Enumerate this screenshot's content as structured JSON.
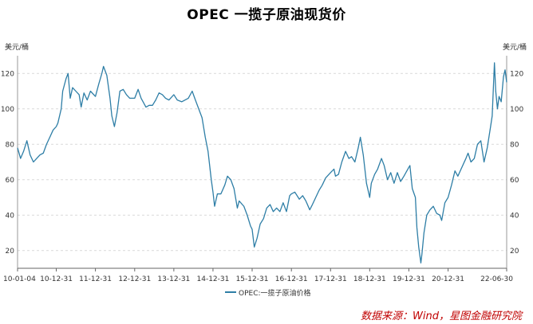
{
  "chart_data": {
    "type": "line",
    "title": "OPEC 一揽子原油现货价",
    "unit_left": "美元/桶",
    "unit_right": "美元/桶",
    "ylim": [
      10,
      130
    ],
    "yticks": [
      20,
      40,
      60,
      80,
      100,
      120
    ],
    "grid": true,
    "legend_position": "bottom-center",
    "x_tick_labels": [
      "10-01-04",
      "10-12-31",
      "11-12-31",
      "12-12-31",
      "13-12-31",
      "14-12-31",
      "15-12-31",
      "16-12-31",
      "17-12-31",
      "18-12-31",
      "19-12-31",
      "20-12-31",
      "22-06-30"
    ],
    "x_tick_dates": [
      "2010-01-04",
      "2010-12-31",
      "2011-12-31",
      "2012-12-31",
      "2013-12-31",
      "2014-12-31",
      "2015-12-31",
      "2016-12-31",
      "2017-12-31",
      "2018-12-31",
      "2019-12-31",
      "2020-12-31",
      "2022-06-30"
    ],
    "series": [
      {
        "name": "OPEC:一揽子原油价格",
        "color": "#2e7ea6",
        "points": [
          [
            "2010-01-04",
            78
          ],
          [
            "2010-02-01",
            72
          ],
          [
            "2010-03-01",
            76
          ],
          [
            "2010-04-01",
            82
          ],
          [
            "2010-05-01",
            74
          ],
          [
            "2010-06-01",
            70
          ],
          [
            "2010-07-01",
            72
          ],
          [
            "2010-08-01",
            74
          ],
          [
            "2010-09-01",
            75
          ],
          [
            "2010-10-01",
            80
          ],
          [
            "2010-11-01",
            84
          ],
          [
            "2010-12-01",
            88
          ],
          [
            "2010-12-31",
            90
          ],
          [
            "2011-01-15",
            92
          ],
          [
            "2011-02-15",
            100
          ],
          [
            "2011-03-01",
            110
          ],
          [
            "2011-04-01",
            117
          ],
          [
            "2011-04-20",
            120
          ],
          [
            "2011-05-10",
            106
          ],
          [
            "2011-06-01",
            112
          ],
          [
            "2011-07-01",
            110
          ],
          [
            "2011-08-01",
            108
          ],
          [
            "2011-08-20",
            101
          ],
          [
            "2011-09-15",
            109
          ],
          [
            "2011-10-15",
            105
          ],
          [
            "2011-11-15",
            110
          ],
          [
            "2011-12-31",
            107
          ],
          [
            "2012-01-31",
            114
          ],
          [
            "2012-02-29",
            120
          ],
          [
            "2012-03-15",
            124
          ],
          [
            "2012-04-15",
            119
          ],
          [
            "2012-05-15",
            106
          ],
          [
            "2012-06-01",
            96
          ],
          [
            "2012-06-25",
            90
          ],
          [
            "2012-07-20",
            98
          ],
          [
            "2012-08-15",
            110
          ],
          [
            "2012-09-15",
            111
          ],
          [
            "2012-10-15",
            108
          ],
          [
            "2012-11-15",
            106
          ],
          [
            "2012-12-31",
            106
          ],
          [
            "2013-02-01",
            111
          ],
          [
            "2013-03-01",
            106
          ],
          [
            "2013-04-15",
            101
          ],
          [
            "2013-05-15",
            102
          ],
          [
            "2013-06-15",
            102
          ],
          [
            "2013-07-15",
            105
          ],
          [
            "2013-08-15",
            109
          ],
          [
            "2013-09-15",
            108
          ],
          [
            "2013-10-15",
            106
          ],
          [
            "2013-11-15",
            105
          ],
          [
            "2013-12-31",
            108
          ],
          [
            "2014-02-01",
            105
          ],
          [
            "2014-03-15",
            104
          ],
          [
            "2014-05-15",
            106
          ],
          [
            "2014-06-20",
            110
          ],
          [
            "2014-07-20",
            105
          ],
          [
            "2014-08-20",
            100
          ],
          [
            "2014-09-20",
            95
          ],
          [
            "2014-10-20",
            84
          ],
          [
            "2014-11-15",
            76
          ],
          [
            "2014-12-15",
            60
          ],
          [
            "2014-12-31",
            53
          ],
          [
            "2015-01-15",
            45
          ],
          [
            "2015-02-10",
            52
          ],
          [
            "2015-03-15",
            52
          ],
          [
            "2015-04-20",
            57
          ],
          [
            "2015-05-15",
            62
          ],
          [
            "2015-06-15",
            60
          ],
          [
            "2015-07-15",
            55
          ],
          [
            "2015-08-15",
            44
          ],
          [
            "2015-09-01",
            48
          ],
          [
            "2015-10-15",
            45
          ],
          [
            "2015-11-15",
            40
          ],
          [
            "2015-12-15",
            34
          ],
          [
            "2015-12-31",
            32
          ],
          [
            "2016-01-20",
            22
          ],
          [
            "2016-02-15",
            27
          ],
          [
            "2016-03-15",
            35
          ],
          [
            "2016-04-15",
            38
          ],
          [
            "2016-05-15",
            44
          ],
          [
            "2016-06-15",
            46
          ],
          [
            "2016-07-15",
            42
          ],
          [
            "2016-08-15",
            44
          ],
          [
            "2016-09-15",
            42
          ],
          [
            "2016-10-15",
            47
          ],
          [
            "2016-11-15",
            42
          ],
          [
            "2016-12-15",
            51
          ],
          [
            "2016-12-31",
            52
          ],
          [
            "2017-02-01",
            53
          ],
          [
            "2017-03-15",
            49
          ],
          [
            "2017-04-15",
            51
          ],
          [
            "2017-05-15",
            48
          ],
          [
            "2017-06-20",
            43
          ],
          [
            "2017-07-15",
            46
          ],
          [
            "2017-08-15",
            50
          ],
          [
            "2017-09-15",
            54
          ],
          [
            "2017-10-15",
            57
          ],
          [
            "2017-11-15",
            61
          ],
          [
            "2017-12-31",
            64
          ],
          [
            "2018-02-01",
            66
          ],
          [
            "2018-02-15",
            62
          ],
          [
            "2018-03-15",
            63
          ],
          [
            "2018-04-15",
            70
          ],
          [
            "2018-05-20",
            76
          ],
          [
            "2018-06-20",
            72
          ],
          [
            "2018-07-15",
            73
          ],
          [
            "2018-08-15",
            70
          ],
          [
            "2018-09-15",
            78
          ],
          [
            "2018-10-05",
            84
          ],
          [
            "2018-11-01",
            74
          ],
          [
            "2018-12-01",
            58
          ],
          [
            "2018-12-31",
            50
          ],
          [
            "2019-01-15",
            58
          ],
          [
            "2019-02-15",
            63
          ],
          [
            "2019-03-15",
            66
          ],
          [
            "2019-04-20",
            72
          ],
          [
            "2019-05-15",
            68
          ],
          [
            "2019-06-15",
            60
          ],
          [
            "2019-07-15",
            64
          ],
          [
            "2019-08-15",
            58
          ],
          [
            "2019-09-15",
            64
          ],
          [
            "2019-10-15",
            59
          ],
          [
            "2019-11-15",
            62
          ],
          [
            "2019-12-31",
            67
          ],
          [
            "2020-01-10",
            68
          ],
          [
            "2020-02-01",
            55
          ],
          [
            "2020-03-01",
            50
          ],
          [
            "2020-03-15",
            33
          ],
          [
            "2020-04-01",
            22
          ],
          [
            "2020-04-21",
            13
          ],
          [
            "2020-05-01",
            18
          ],
          [
            "2020-05-20",
            30
          ],
          [
            "2020-06-15",
            40
          ],
          [
            "2020-07-15",
            43
          ],
          [
            "2020-08-15",
            45
          ],
          [
            "2020-09-15",
            41
          ],
          [
            "2020-10-15",
            40
          ],
          [
            "2020-11-01",
            37
          ],
          [
            "2020-12-01",
            47
          ],
          [
            "2020-12-31",
            50
          ],
          [
            "2021-02-01",
            57
          ],
          [
            "2021-03-05",
            65
          ],
          [
            "2021-04-01",
            62
          ],
          [
            "2021-05-01",
            66
          ],
          [
            "2021-06-15",
            72
          ],
          [
            "2021-07-05",
            75
          ],
          [
            "2021-08-01",
            70
          ],
          [
            "2021-09-01",
            72
          ],
          [
            "2021-10-01",
            80
          ],
          [
            "2021-11-01",
            82
          ],
          [
            "2021-12-01",
            70
          ],
          [
            "2021-12-31",
            78
          ],
          [
            "2022-01-31",
            90
          ],
          [
            "2022-02-15",
            96
          ],
          [
            "2022-03-08",
            126
          ],
          [
            "2022-03-20",
            110
          ],
          [
            "2022-04-05",
            100
          ],
          [
            "2022-04-20",
            107
          ],
          [
            "2022-05-10",
            104
          ],
          [
            "2022-05-31",
            118
          ],
          [
            "2022-06-15",
            122
          ],
          [
            "2022-06-30",
            115
          ]
        ]
      }
    ],
    "source": "数据来源：Wind，星图金融研究院"
  }
}
